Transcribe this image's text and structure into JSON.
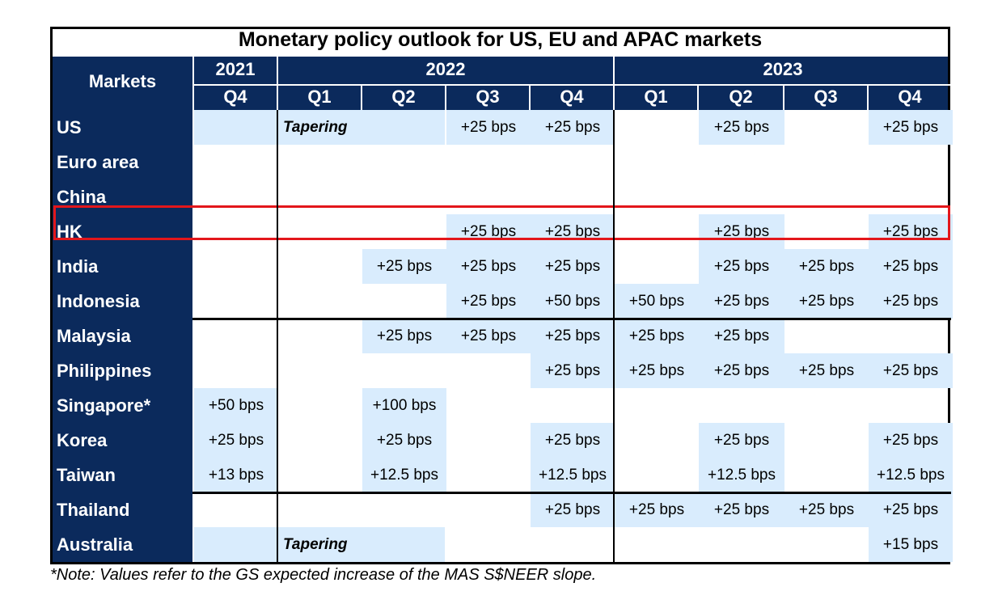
{
  "table": {
    "title": "Monetary policy outlook for US, EU and APAC markets",
    "markets_header": "Markets",
    "years": [
      {
        "label": "2021"
      },
      {
        "label": "2022"
      },
      {
        "label": "2023"
      }
    ],
    "quarters": [
      "Q4",
      "Q1",
      "Q2",
      "Q3",
      "Q4",
      "Q1",
      "Q2",
      "Q3",
      "Q4"
    ],
    "rows": [
      {
        "market": "US",
        "cells": [
          {
            "text": "",
            "blue": true
          },
          {
            "text": "Tapering",
            "blue": true,
            "span": 2,
            "italic": true
          },
          {
            "text": "+25 bps",
            "blue": true
          },
          {
            "text": "+25 bps",
            "blue": true
          },
          {
            "text": "",
            "blue": false
          },
          {
            "text": "+25 bps",
            "blue": true
          },
          {
            "text": "",
            "blue": false
          },
          {
            "text": "+25 bps",
            "blue": true
          }
        ]
      },
      {
        "market": "Euro area",
        "cells": []
      },
      {
        "market": "China",
        "cells": []
      },
      {
        "market": "HK",
        "cells": [
          {
            "text": "",
            "blue": false
          },
          {
            "text": "",
            "blue": false
          },
          {
            "text": "",
            "blue": false
          },
          {
            "text": "+25 bps",
            "blue": true
          },
          {
            "text": "+25 bps",
            "blue": true
          },
          {
            "text": "",
            "blue": false
          },
          {
            "text": "+25 bps",
            "blue": true
          },
          {
            "text": "",
            "blue": false
          },
          {
            "text": "+25 bps",
            "blue": true
          }
        ]
      },
      {
        "market": "India",
        "cells": [
          {
            "text": "",
            "blue": false
          },
          {
            "text": "",
            "blue": false
          },
          {
            "text": "+25 bps",
            "blue": true
          },
          {
            "text": "+25 bps",
            "blue": true
          },
          {
            "text": "+25 bps",
            "blue": true
          },
          {
            "text": "",
            "blue": false
          },
          {
            "text": "+25 bps",
            "blue": true
          },
          {
            "text": "+25 bps",
            "blue": true
          },
          {
            "text": "+25 bps",
            "blue": true
          }
        ]
      },
      {
        "market": "Indonesia",
        "cells": [
          {
            "text": "",
            "blue": false
          },
          {
            "text": "",
            "blue": false
          },
          {
            "text": "",
            "blue": false
          },
          {
            "text": "+25 bps",
            "blue": true
          },
          {
            "text": "+50 bps",
            "blue": true
          },
          {
            "text": "+50 bps",
            "blue": true
          },
          {
            "text": "+25 bps",
            "blue": true
          },
          {
            "text": "+25 bps",
            "blue": true
          },
          {
            "text": "+25 bps",
            "blue": true
          }
        ]
      },
      {
        "market": "Malaysia",
        "cells": [
          {
            "text": "",
            "blue": false
          },
          {
            "text": "",
            "blue": false
          },
          {
            "text": "+25 bps",
            "blue": true
          },
          {
            "text": "+25 bps",
            "blue": true
          },
          {
            "text": "+25 bps",
            "blue": true
          },
          {
            "text": "+25 bps",
            "blue": true
          },
          {
            "text": "+25 bps",
            "blue": true
          },
          {
            "text": "",
            "blue": false
          },
          {
            "text": "",
            "blue": false
          }
        ]
      },
      {
        "market": "Philippines",
        "cells": [
          {
            "text": "",
            "blue": false
          },
          {
            "text": "",
            "blue": false
          },
          {
            "text": "",
            "blue": false
          },
          {
            "text": "",
            "blue": false
          },
          {
            "text": "+25 bps",
            "blue": true
          },
          {
            "text": "+25 bps",
            "blue": true
          },
          {
            "text": "+25 bps",
            "blue": true
          },
          {
            "text": "+25 bps",
            "blue": true
          },
          {
            "text": "+25 bps",
            "blue": true
          }
        ]
      },
      {
        "market": "Singapore*",
        "cells": [
          {
            "text": "+50 bps",
            "blue": true
          },
          {
            "text": "",
            "blue": false
          },
          {
            "text": "+100 bps",
            "blue": true
          },
          {
            "text": "",
            "blue": false
          },
          {
            "text": "",
            "blue": false
          },
          {
            "text": "",
            "blue": false
          },
          {
            "text": "",
            "blue": false
          },
          {
            "text": "",
            "blue": false
          },
          {
            "text": "",
            "blue": false
          }
        ]
      },
      {
        "market": "Korea",
        "cells": [
          {
            "text": "+25 bps",
            "blue": true
          },
          {
            "text": "",
            "blue": false
          },
          {
            "text": "+25 bps",
            "blue": true
          },
          {
            "text": "",
            "blue": false
          },
          {
            "text": "+25 bps",
            "blue": true
          },
          {
            "text": "",
            "blue": false
          },
          {
            "text": "+25 bps",
            "blue": true
          },
          {
            "text": "",
            "blue": false
          },
          {
            "text": "+25 bps",
            "blue": true
          }
        ]
      },
      {
        "market": "Taiwan",
        "cells": [
          {
            "text": "+13 bps",
            "blue": true
          },
          {
            "text": "",
            "blue": false
          },
          {
            "text": "+12.5 bps",
            "blue": true
          },
          {
            "text": "",
            "blue": false
          },
          {
            "text": "+12.5 bps",
            "blue": true
          },
          {
            "text": "",
            "blue": false
          },
          {
            "text": "+12.5 bps",
            "blue": true
          },
          {
            "text": "",
            "blue": false
          },
          {
            "text": "+12.5 bps",
            "blue": true
          }
        ]
      },
      {
        "market": "Thailand",
        "cells": [
          {
            "text": "",
            "blue": false
          },
          {
            "text": "",
            "blue": false
          },
          {
            "text": "",
            "blue": false
          },
          {
            "text": "",
            "blue": false
          },
          {
            "text": "+25 bps",
            "blue": true
          },
          {
            "text": "+25 bps",
            "blue": true
          },
          {
            "text": "+25 bps",
            "blue": true
          },
          {
            "text": "+25 bps",
            "blue": true
          },
          {
            "text": "+25 bps",
            "blue": true
          }
        ]
      },
      {
        "market": "Australia",
        "cells": [
          {
            "text": "",
            "blue": true
          },
          {
            "text": "Tapering",
            "blue": true,
            "span": 2,
            "italic": true
          },
          {
            "text": "",
            "blue": false
          },
          {
            "text": "",
            "blue": false
          },
          {
            "text": "",
            "blue": false
          },
          {
            "text": "",
            "blue": false
          },
          {
            "text": "",
            "blue": false
          },
          {
            "text": "+15 bps",
            "blue": true
          }
        ]
      }
    ],
    "highlighted_market": "China",
    "highlight_color": "#e3161b",
    "header_color": "#0b2a5c",
    "cell_color": "#d9ecfd"
  },
  "note": "*Note: Values refer to the GS expected increase of the MAS S$NEER slope."
}
